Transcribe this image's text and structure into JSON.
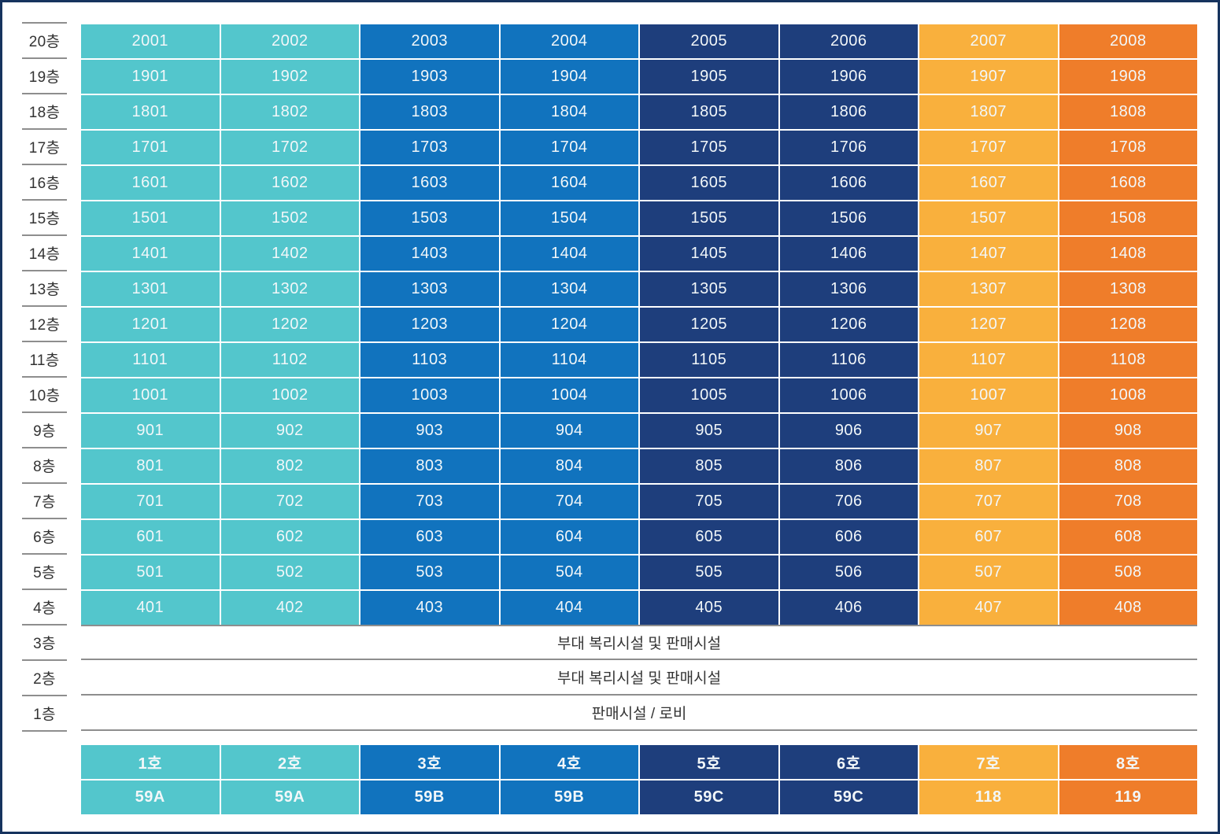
{
  "palette": {
    "teal": "#53C6CC",
    "blue": "#1173BE",
    "navy": "#1E3E7C",
    "amber": "#F9B03D",
    "orange": "#EF7D2A",
    "line_gray": "#8E8E8E",
    "label_text": "#333333",
    "cell_text": "#F2F7F9",
    "page_border": "#16335E"
  },
  "column_colors": [
    "teal",
    "teal",
    "blue",
    "blue",
    "navy",
    "navy",
    "amber",
    "orange"
  ],
  "floors": [
    {
      "label": "20층",
      "units": [
        "2001",
        "2002",
        "2003",
        "2004",
        "2005",
        "2006",
        "2007",
        "2008"
      ]
    },
    {
      "label": "19층",
      "units": [
        "1901",
        "1902",
        "1903",
        "1904",
        "1905",
        "1906",
        "1907",
        "1908"
      ]
    },
    {
      "label": "18층",
      "units": [
        "1801",
        "1802",
        "1803",
        "1804",
        "1805",
        "1806",
        "1807",
        "1808"
      ]
    },
    {
      "label": "17층",
      "units": [
        "1701",
        "1702",
        "1703",
        "1704",
        "1705",
        "1706",
        "1707",
        "1708"
      ]
    },
    {
      "label": "16층",
      "units": [
        "1601",
        "1602",
        "1603",
        "1604",
        "1605",
        "1606",
        "1607",
        "1608"
      ]
    },
    {
      "label": "15층",
      "units": [
        "1501",
        "1502",
        "1503",
        "1504",
        "1505",
        "1506",
        "1507",
        "1508"
      ]
    },
    {
      "label": "14층",
      "units": [
        "1401",
        "1402",
        "1403",
        "1404",
        "1405",
        "1406",
        "1407",
        "1408"
      ]
    },
    {
      "label": "13층",
      "units": [
        "1301",
        "1302",
        "1303",
        "1304",
        "1305",
        "1306",
        "1307",
        "1308"
      ]
    },
    {
      "label": "12층",
      "units": [
        "1201",
        "1202",
        "1203",
        "1204",
        "1205",
        "1206",
        "1207",
        "1208"
      ]
    },
    {
      "label": "11층",
      "units": [
        "1101",
        "1102",
        "1103",
        "1104",
        "1105",
        "1106",
        "1107",
        "1108"
      ]
    },
    {
      "label": "10층",
      "units": [
        "1001",
        "1002",
        "1003",
        "1004",
        "1005",
        "1006",
        "1007",
        "1008"
      ]
    },
    {
      "label": "9층",
      "units": [
        "901",
        "902",
        "903",
        "904",
        "905",
        "906",
        "907",
        "908"
      ]
    },
    {
      "label": "8층",
      "units": [
        "801",
        "802",
        "803",
        "804",
        "805",
        "806",
        "807",
        "808"
      ]
    },
    {
      "label": "7층",
      "units": [
        "701",
        "702",
        "703",
        "704",
        "705",
        "706",
        "707",
        "708"
      ]
    },
    {
      "label": "6층",
      "units": [
        "601",
        "602",
        "603",
        "604",
        "605",
        "606",
        "607",
        "608"
      ]
    },
    {
      "label": "5층",
      "units": [
        "501",
        "502",
        "503",
        "504",
        "505",
        "506",
        "507",
        "508"
      ]
    },
    {
      "label": "4층",
      "units": [
        "401",
        "402",
        "403",
        "404",
        "405",
        "406",
        "407",
        "408"
      ]
    },
    {
      "label": "3층",
      "facility": "부대 복리시설 및 판매시설"
    },
    {
      "label": "2층",
      "facility": "부대 복리시설 및 판매시설"
    },
    {
      "label": "1층",
      "facility": "판매시설 / 로비"
    }
  ],
  "legend": {
    "names": [
      "1호",
      "2호",
      "3호",
      "4호",
      "5호",
      "6호",
      "7호",
      "8호"
    ],
    "types": [
      "59A",
      "59A",
      "59B",
      "59B",
      "59C",
      "59C",
      "118",
      "119"
    ]
  }
}
